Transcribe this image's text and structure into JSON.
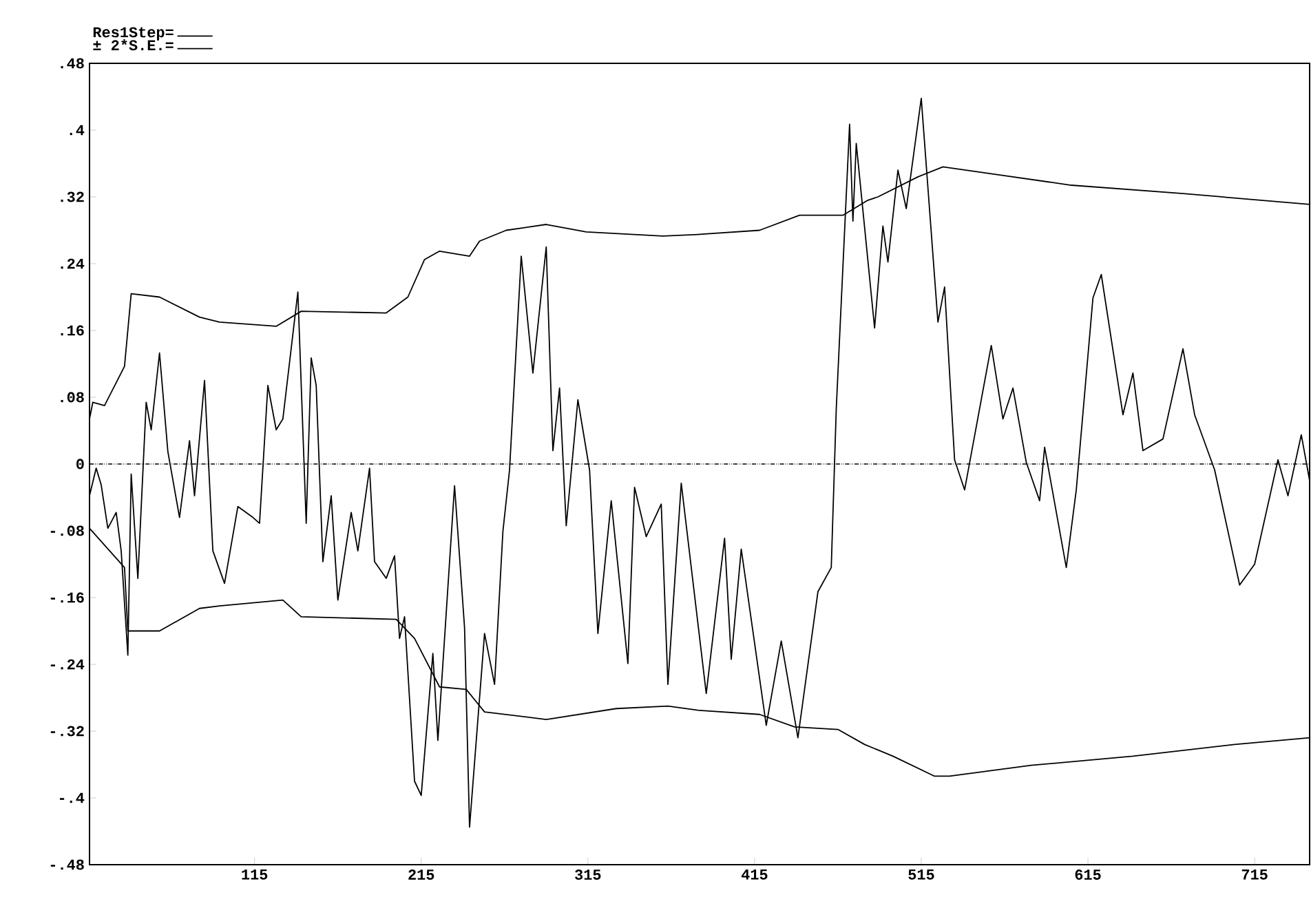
{
  "chart_data": {
    "type": "line",
    "legend": "top left",
    "x": [
      16,
      20,
      23,
      27,
      32,
      35,
      39,
      41,
      45,
      50,
      53,
      58,
      63,
      70,
      76,
      79,
      85,
      90,
      97,
      105,
      114,
      118,
      123,
      128,
      132,
      141,
      146,
      149,
      152,
      156,
      161,
      165,
      173,
      177,
      184,
      187,
      194,
      199,
      202,
      205,
      211,
      215,
      222,
      225,
      235,
      241,
      244,
      253,
      259,
      264,
      268,
      275,
      282,
      290,
      294,
      298,
      302,
      309,
      316,
      321,
      329,
      339,
      343,
      350,
      359,
      363,
      371,
      386,
      397,
      401,
      407,
      422,
      431,
      441,
      453,
      461,
      464,
      472,
      474,
      476,
      487,
      492,
      495,
      501,
      506,
      515,
      525,
      529,
      535,
      541,
      557,
      564,
      570,
      578,
      586,
      589,
      602,
      608,
      618,
      623,
      636,
      642,
      648,
      660,
      672,
      679,
      691,
      706,
      715,
      729,
      735,
      743,
      748
    ],
    "series": [
      {
        "name": "Res1Step=",
        "color": "#000000",
        "values": [
          -0.038,
          -0.005,
          -0.025,
          -0.077,
          -0.058,
          -0.104,
          -0.229,
          -0.012,
          -0.137,
          0.074,
          0.041,
          0.133,
          0.015,
          -0.064,
          0.028,
          -0.038,
          0.1,
          -0.104,
          -0.143,
          -0.051,
          -0.064,
          -0.071,
          0.094,
          0.041,
          0.054,
          0.206,
          -0.071,
          0.127,
          0.094,
          -0.117,
          -0.038,
          -0.163,
          -0.058,
          -0.104,
          -0.005,
          -0.117,
          -0.137,
          -0.11,
          -0.209,
          -0.183,
          -0.38,
          -0.397,
          -0.227,
          -0.331,
          -0.026,
          -0.196,
          -0.435,
          -0.203,
          -0.264,
          -0.081,
          -0.007,
          0.249,
          0.109,
          0.26,
          0.016,
          0.091,
          -0.074,
          0.077,
          -0.007,
          -0.203,
          -0.044,
          -0.239,
          -0.028,
          -0.087,
          -0.048,
          -0.264,
          -0.023,
          -0.275,
          -0.089,
          -0.234,
          -0.102,
          -0.313,
          -0.212,
          -0.328,
          -0.153,
          -0.124,
          0.066,
          0.407,
          0.291,
          0.384,
          0.163,
          0.285,
          0.242,
          0.352,
          0.306,
          0.438,
          0.17,
          0.212,
          0.005,
          -0.031,
          0.142,
          0.054,
          0.091,
          0.002,
          -0.044,
          0.02,
          -0.124,
          -0.031,
          0.199,
          0.227,
          0.059,
          0.109,
          0.016,
          0.03,
          0.138,
          0.059,
          -0.007,
          -0.145,
          -0.12,
          0.005,
          -0.038,
          0.035,
          -0.02
        ]
      },
      {
        "name": "± 2*S.E.=",
        "color": "#000000",
        "x": [
          16,
          18,
          25,
          37,
          41,
          58,
          82,
          94,
          128,
          143,
          194,
          207,
          217,
          226,
          244,
          250,
          266,
          290,
          314,
          360,
          381,
          418,
          442,
          468,
          483,
          489,
          513,
          528,
          605,
          672,
          748
        ],
        "values": [
          0.054,
          0.074,
          0.07,
          0.117,
          0.204,
          0.2,
          0.176,
          0.17,
          0.165,
          0.183,
          0.181,
          0.2,
          0.245,
          0.255,
          0.249,
          0.267,
          0.28,
          0.287,
          0.278,
          0.273,
          0.275,
          0.28,
          0.298,
          0.298,
          0.316,
          0.32,
          0.344,
          0.356,
          0.334,
          0.324,
          0.311
        ]
      },
      {
        "color": "#000000",
        "x": [
          16,
          37,
          39,
          58,
          82,
          94,
          132,
          143,
          200,
          211,
          226,
          242,
          253,
          290,
          332,
          363,
          381,
          418,
          439,
          465,
          481,
          498,
          523,
          532,
          581,
          642,
          703,
          748
        ],
        "values": [
          -0.077,
          -0.124,
          -0.2,
          -0.2,
          -0.173,
          -0.17,
          -0.163,
          -0.183,
          -0.186,
          -0.209,
          -0.267,
          -0.27,
          -0.297,
          -0.306,
          -0.293,
          -0.29,
          -0.295,
          -0.3,
          -0.315,
          -0.318,
          -0.336,
          -0.35,
          -0.374,
          -0.374,
          -0.361,
          -0.35,
          -0.336,
          -0.328
        ]
      }
    ],
    "xlim": [
      16,
      748
    ],
    "xticks": [
      115,
      215,
      315,
      415,
      515,
      615,
      715
    ],
    "ylim": [
      -0.48,
      0.48
    ],
    "yticks": [
      {
        "value": -0.48,
        "label": "-.48"
      },
      {
        "value": -0.4,
        "label": "-.4"
      },
      {
        "value": -0.32,
        "label": "-.32"
      },
      {
        "value": -0.24,
        "label": "-.24"
      },
      {
        "value": -0.16,
        "label": "-.16"
      },
      {
        "value": -0.08,
        "label": "-.08"
      },
      0,
      {
        "value": 0.08,
        "label": ".08"
      },
      {
        "value": 0.16,
        "label": ".16"
      },
      {
        "value": 0.24,
        "label": ".24"
      },
      {
        "value": 0.32,
        "label": ".32"
      },
      {
        "value": 0.4,
        "label": ".4"
      },
      {
        "value": 0.48,
        "label": ".48"
      }
    ],
    "ref_lines": [
      {
        "axis": "y",
        "value": 0,
        "line_style": "dotted",
        "color": "#000000"
      }
    ]
  }
}
